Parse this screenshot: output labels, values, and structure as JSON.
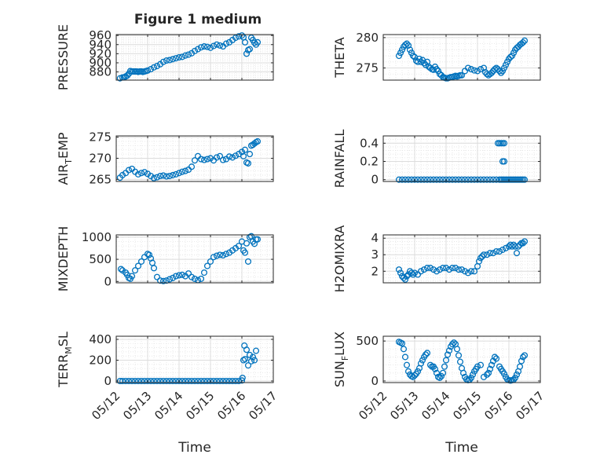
{
  "figure": {
    "title": "Figure 1 medium"
  },
  "colors": {
    "marker": "#0072BD",
    "grid": "#dcdcdc",
    "axis": "#262626"
  },
  "x_ticks": [
    "05/12",
    "05/13",
    "05/14",
    "05/15",
    "05/16",
    "05/17"
  ],
  "x_label": "Time",
  "chart_data": [
    {
      "type": "scatter",
      "ylabel": "PRESSURE",
      "ylim": [
        862,
        962
      ],
      "yticks": [
        880,
        900,
        920,
        940,
        960
      ],
      "xlim": [
        0,
        5
      ],
      "series": [
        {
          "x": [
            0.12,
            0.2,
            0.25,
            0.3,
            0.35,
            0.4,
            0.45,
            0.5,
            0.55,
            0.6,
            0.65,
            0.7,
            0.75,
            0.8,
            0.85,
            0.9,
            0.95,
            1.0,
            1.1,
            1.2,
            1.3,
            1.4,
            1.5,
            1.6,
            1.7,
            1.8,
            1.9,
            2.0,
            2.1,
            2.2,
            2.3,
            2.4,
            2.5,
            2.6,
            2.7,
            2.8,
            2.9,
            3.0,
            3.1,
            3.2,
            3.3,
            3.4,
            3.5,
            3.6,
            3.7,
            3.8,
            3.9,
            4.0,
            4.05,
            4.1,
            4.15,
            4.2,
            4.25,
            4.3,
            4.35,
            4.4,
            4.45,
            4.5
          ],
          "y": [
            866,
            868,
            868,
            870,
            872,
            876,
            882,
            881,
            881,
            881,
            881,
            880,
            881,
            881,
            880,
            881,
            882,
            883,
            886,
            890,
            893,
            897,
            902,
            905,
            906,
            908,
            910,
            912,
            913,
            916,
            918,
            921,
            926,
            930,
            934,
            936,
            935,
            933,
            937,
            940,
            938,
            936,
            942,
            945,
            950,
            955,
            958,
            960,
            956,
            945,
            920,
            928,
            930,
            955,
            950,
            944,
            940,
            945
          ]
        }
      ]
    },
    {
      "type": "scatter",
      "ylabel": "THETA",
      "ylim": [
        273,
        280.5
      ],
      "yticks": [
        275,
        280
      ],
      "xlim": [
        0,
        5
      ],
      "series": [
        {
          "x": [
            0.5,
            0.55,
            0.6,
            0.65,
            0.7,
            0.75,
            0.8,
            0.85,
            0.9,
            0.95,
            1.0,
            1.05,
            1.1,
            1.15,
            1.2,
            1.25,
            1.3,
            1.35,
            1.4,
            1.45,
            1.5,
            1.55,
            1.6,
            1.65,
            1.7,
            1.75,
            1.8,
            1.85,
            1.9,
            1.95,
            2.0,
            2.05,
            2.1,
            2.15,
            2.2,
            2.25,
            2.3,
            2.35,
            2.4,
            2.45,
            2.5,
            2.6,
            2.7,
            2.8,
            2.9,
            3.0,
            3.1,
            3.2,
            3.25,
            3.3,
            3.35,
            3.4,
            3.45,
            3.5,
            3.55,
            3.6,
            3.65,
            3.7,
            3.75,
            3.8,
            3.85,
            3.9,
            3.95,
            4.0,
            4.05,
            4.1,
            4.15,
            4.2,
            4.25,
            4.3,
            4.35,
            4.4,
            4.45,
            4.5
          ],
          "y": [
            277,
            277.5,
            278,
            278.5,
            278.8,
            279,
            278.7,
            278,
            277.5,
            277,
            276.8,
            276.2,
            276,
            276.5,
            276,
            276.3,
            275.8,
            275.5,
            276,
            275.2,
            275,
            274.8,
            274.7,
            275.2,
            274.8,
            274.5,
            274,
            273.8,
            273.5,
            273.4,
            273.3,
            273.3,
            273.4,
            273.5,
            273.5,
            273.6,
            273.7,
            273.6,
            273.7,
            273.8,
            273.8,
            274.5,
            275,
            274.8,
            274.6,
            274.5,
            274.8,
            275,
            274.3,
            274,
            273.8,
            274,
            274.2,
            274.5,
            274.8,
            275,
            274.8,
            274.5,
            274.2,
            274.5,
            275,
            275.5,
            276,
            276.5,
            276.8,
            277,
            277.5,
            278,
            278.3,
            278.5,
            278.8,
            279,
            279.2,
            279.5
          ]
        }
      ]
    },
    {
      "type": "scatter",
      "ylabel": "AIR_TEMP",
      "ylim": [
        264.5,
        275.3
      ],
      "yticks": [
        265,
        270,
        275
      ],
      "xlim": [
        0,
        5
      ],
      "series": [
        {
          "x": [
            0.12,
            0.2,
            0.3,
            0.4,
            0.5,
            0.6,
            0.7,
            0.8,
            0.9,
            1.0,
            1.1,
            1.2,
            1.3,
            1.4,
            1.5,
            1.6,
            1.7,
            1.8,
            1.9,
            2.0,
            2.1,
            2.2,
            2.3,
            2.4,
            2.5,
            2.6,
            2.7,
            2.8,
            2.9,
            3.0,
            3.1,
            3.2,
            3.3,
            3.4,
            3.5,
            3.6,
            3.7,
            3.8,
            3.9,
            4.0,
            4.05,
            4.1,
            4.15,
            4.2,
            4.25,
            4.3,
            4.35,
            4.4,
            4.45,
            4.5
          ],
          "y": [
            265.4,
            266,
            266.5,
            267.2,
            267.5,
            266.8,
            266.2,
            266.5,
            266.7,
            266.3,
            265.8,
            265.3,
            265.5,
            265.8,
            265.9,
            265.7,
            265.8,
            266,
            266.2,
            266.5,
            266.8,
            267,
            267.3,
            268,
            269.5,
            270.5,
            269.8,
            269.6,
            269.8,
            270,
            269.5,
            270.2,
            270.5,
            269.6,
            269.8,
            270.4,
            270.2,
            270.6,
            271,
            271.5,
            270.5,
            272,
            269,
            268.8,
            271,
            273,
            273.2,
            273.5,
            273.8,
            274
          ]
        }
      ]
    },
    {
      "type": "scatter",
      "ylabel": "RAINFALL",
      "ylim": [
        -0.02,
        0.48
      ],
      "yticks": [
        0,
        0.2,
        0.4
      ],
      "xlim": [
        0,
        5
      ],
      "series": [
        {
          "x": [
            0.5,
            0.6,
            0.7,
            0.8,
            0.9,
            1.0,
            1.1,
            1.2,
            1.3,
            1.4,
            1.5,
            1.6,
            1.7,
            1.8,
            1.9,
            2.0,
            2.1,
            2.2,
            2.3,
            2.4,
            2.5,
            2.6,
            2.7,
            2.8,
            2.9,
            3.0,
            3.1,
            3.2,
            3.3,
            3.4,
            3.5,
            3.6,
            3.7,
            3.75,
            3.8,
            3.85,
            3.9,
            3.95,
            4.0,
            4.05,
            4.1,
            4.15,
            4.2,
            4.25,
            4.3,
            4.35,
            4.4,
            4.45,
            4.5,
            3.65,
            3.7,
            3.75,
            3.8,
            3.85,
            3.8,
            3.85
          ],
          "y": [
            0,
            0,
            0,
            0,
            0,
            0,
            0,
            0,
            0,
            0,
            0,
            0,
            0,
            0,
            0,
            0,
            0,
            0,
            0,
            0,
            0,
            0,
            0,
            0,
            0,
            0,
            0,
            0,
            0,
            0,
            0,
            0,
            0,
            0,
            0,
            0,
            0,
            0,
            0,
            0,
            0,
            0,
            0,
            0,
            0,
            0,
            0,
            0,
            0,
            0.4,
            0.4,
            0.4,
            0.4,
            0.4,
            0.2,
            0.2
          ]
        }
      ]
    },
    {
      "type": "scatter",
      "ylabel": "MIXDEPTH",
      "ylim": [
        -30,
        1050
      ],
      "yticks": [
        0,
        500,
        1000
      ],
      "xlim": [
        0,
        5
      ],
      "series": [
        {
          "x": [
            0.15,
            0.2,
            0.3,
            0.35,
            0.4,
            0.45,
            0.5,
            0.6,
            0.7,
            0.8,
            0.9,
            1.0,
            1.05,
            1.1,
            1.15,
            1.2,
            1.3,
            1.4,
            1.5,
            1.6,
            1.7,
            1.8,
            1.9,
            2.0,
            2.1,
            2.2,
            2.3,
            2.4,
            2.5,
            2.6,
            2.7,
            2.8,
            2.9,
            3.0,
            3.1,
            3.2,
            3.3,
            3.4,
            3.5,
            3.6,
            3.7,
            3.8,
            3.9,
            4.0,
            4.05,
            4.1,
            4.15,
            4.2,
            4.25,
            4.3,
            4.35,
            4.4,
            4.45,
            4.5
          ],
          "y": [
            280,
            250,
            200,
            150,
            80,
            60,
            120,
            250,
            350,
            450,
            550,
            620,
            600,
            520,
            420,
            300,
            100,
            20,
            10,
            20,
            50,
            80,
            120,
            140,
            150,
            120,
            180,
            100,
            60,
            30,
            60,
            200,
            350,
            450,
            550,
            580,
            600,
            590,
            620,
            650,
            700,
            750,
            800,
            900,
            700,
            650,
            860,
            450,
            1000,
            1020,
            900,
            850,
            950,
            950
          ]
        }
      ]
    },
    {
      "type": "scatter",
      "ylabel": "H2OMIXRA",
      "ylim": [
        1.3,
        4.2
      ],
      "yticks": [
        2,
        3,
        4
      ],
      "xlim": [
        0,
        5
      ],
      "series": [
        {
          "x": [
            0.5,
            0.55,
            0.6,
            0.65,
            0.7,
            0.75,
            0.8,
            0.85,
            0.9,
            0.95,
            1.0,
            1.1,
            1.2,
            1.3,
            1.4,
            1.5,
            1.6,
            1.7,
            1.8,
            1.9,
            2.0,
            2.1,
            2.2,
            2.3,
            2.4,
            2.5,
            2.6,
            2.7,
            2.8,
            2.9,
            3.0,
            3.05,
            3.1,
            3.15,
            3.2,
            3.3,
            3.4,
            3.5,
            3.6,
            3.7,
            3.8,
            3.9,
            4.0,
            4.05,
            4.1,
            4.15,
            4.2,
            4.25,
            4.3,
            4.35,
            4.4,
            4.45,
            4.5
          ],
          "y": [
            2.1,
            1.9,
            1.7,
            1.6,
            1.5,
            1.7,
            1.8,
            2.0,
            1.9,
            1.8,
            1.9,
            1.8,
            2.0,
            2.1,
            2.2,
            2.2,
            2.1,
            2.0,
            2.1,
            2.2,
            2.2,
            2.1,
            2.2,
            2.2,
            2.1,
            2.1,
            2.0,
            1.9,
            2.0,
            2.0,
            2.3,
            2.6,
            2.8,
            2.9,
            3.0,
            3.0,
            3.1,
            3.1,
            3.2,
            3.2,
            3.3,
            3.4,
            3.5,
            3.6,
            3.5,
            3.6,
            3.5,
            3.1,
            3.5,
            3.6,
            3.7,
            3.7,
            3.8
          ]
        }
      ]
    },
    {
      "type": "scatter",
      "ylabel": "TERR_MSL",
      "ylim": [
        -15,
        430
      ],
      "yticks": [
        0,
        200,
        400
      ],
      "xlim": [
        0,
        5
      ],
      "series": [
        {
          "x": [
            0.12,
            0.2,
            0.3,
            0.4,
            0.5,
            0.6,
            0.7,
            0.8,
            0.9,
            1.0,
            1.1,
            1.2,
            1.3,
            1.4,
            1.5,
            1.6,
            1.7,
            1.8,
            1.9,
            2.0,
            2.1,
            2.2,
            2.3,
            2.4,
            2.5,
            2.6,
            2.7,
            2.8,
            2.9,
            3.0,
            3.1,
            3.2,
            3.3,
            3.4,
            3.5,
            3.6,
            3.7,
            3.8,
            3.9,
            4.0,
            4.02,
            4.05,
            4.08,
            4.1,
            4.15,
            4.2,
            4.25,
            4.3,
            4.35,
            4.4,
            4.45
          ],
          "y": [
            0,
            0,
            0,
            0,
            0,
            0,
            0,
            0,
            0,
            0,
            0,
            0,
            0,
            0,
            0,
            0,
            0,
            0,
            0,
            0,
            0,
            0,
            0,
            0,
            0,
            0,
            0,
            0,
            0,
            0,
            0,
            0,
            0,
            0,
            0,
            0,
            0,
            0,
            0,
            5,
            30,
            200,
            340,
            210,
            300,
            150,
            250,
            190,
            230,
            200,
            290
          ]
        }
      ]
    },
    {
      "type": "scatter",
      "ylabel": "SUN_FLUX",
      "ylim": [
        -20,
        560
      ],
      "yticks": [
        0,
        500
      ],
      "xlim": [
        0,
        5
      ],
      "series": [
        {
          "x": [
            0.5,
            0.55,
            0.6,
            0.65,
            0.7,
            0.75,
            0.8,
            0.85,
            0.9,
            0.95,
            1.0,
            1.05,
            1.1,
            1.15,
            1.2,
            1.25,
            1.3,
            1.35,
            1.4,
            1.5,
            1.55,
            1.6,
            1.65,
            1.7,
            1.75,
            1.8,
            1.85,
            1.9,
            1.95,
            2.0,
            2.05,
            2.1,
            2.15,
            2.2,
            2.25,
            2.3,
            2.35,
            2.4,
            2.45,
            2.5,
            2.55,
            2.6,
            2.65,
            2.7,
            2.75,
            2.8,
            2.85,
            2.9,
            2.95,
            3.0,
            3.1,
            3.2,
            3.3,
            3.35,
            3.4,
            3.45,
            3.5,
            3.55,
            3.6,
            3.7,
            3.75,
            3.8,
            3.85,
            3.9,
            3.95,
            4.0,
            4.05,
            4.1,
            4.15,
            4.2,
            4.25,
            4.3,
            4.35,
            4.4,
            4.45,
            4.5
          ],
          "y": [
            490,
            480,
            470,
            400,
            300,
            200,
            120,
            80,
            60,
            50,
            70,
            90,
            120,
            160,
            220,
            260,
            300,
            330,
            350,
            200,
            180,
            180,
            150,
            100,
            50,
            40,
            60,
            100,
            180,
            260,
            330,
            380,
            430,
            460,
            480,
            460,
            400,
            320,
            240,
            160,
            100,
            50,
            20,
            10,
            15,
            40,
            80,
            120,
            150,
            180,
            200,
            50,
            80,
            100,
            150,
            200,
            250,
            300,
            280,
            180,
            150,
            120,
            90,
            50,
            20,
            10,
            5,
            10,
            15,
            40,
            80,
            120,
            180,
            250,
            300,
            320
          ]
        }
      ]
    }
  ]
}
